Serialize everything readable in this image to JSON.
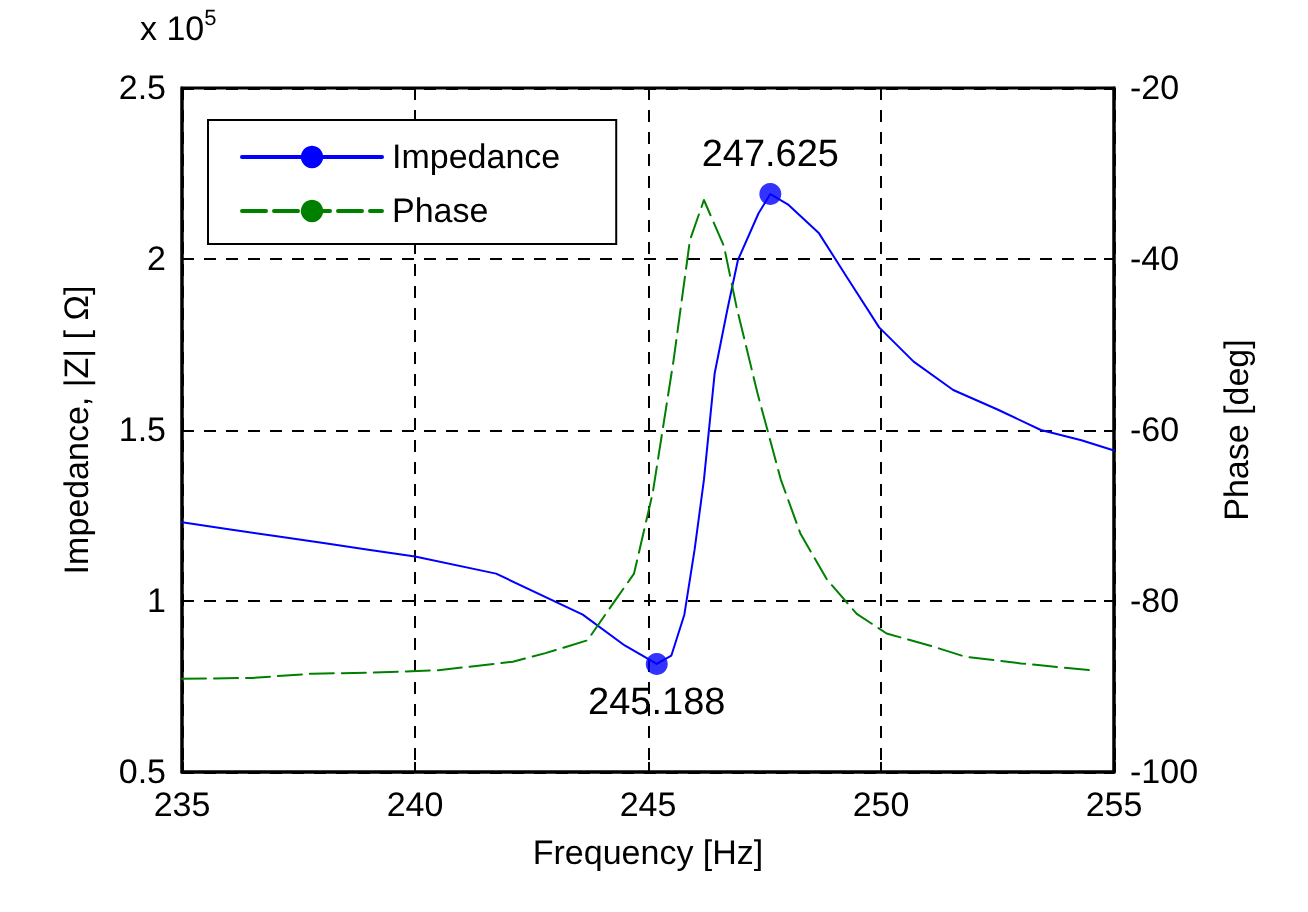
{
  "chart_data": {
    "type": "line",
    "xlabel": "Frequency [Hz]",
    "ylabel": "Impedance, |Z| [ Ω]",
    "y2label": "Phase [deg]",
    "annotations": [
      "x 10$^{5}$",
      {
        "text": "247.625",
        "x": 247.625,
        "y": 2.19
      },
      {
        "text": "245.188",
        "x": 245.188,
        "y": 0.816
      }
    ],
    "series": [
      {
        "name": "Impedance",
        "color": "#0000ff",
        "line_style": "solid",
        "x": [
          235,
          236,
          237,
          238,
          239,
          240,
          241.74,
          243.6,
          244.5,
          245.188,
          245.5,
          245.78,
          246.0,
          246.2,
          246.43,
          246.7,
          246.93,
          247.37,
          247.625,
          248.0,
          248.67,
          249.3,
          249.96,
          250.7,
          251.55,
          252.5,
          253.43,
          254.3,
          255
        ],
        "values": [
          1.23,
          1.21,
          1.19,
          1.17,
          1.15,
          1.13,
          1.08,
          0.96,
          0.87,
          0.816,
          0.84,
          0.96,
          1.15,
          1.354,
          1.665,
          1.85,
          1.997,
          2.133,
          2.19,
          2.16,
          2.075,
          1.94,
          1.8,
          1.7,
          1.617,
          1.56,
          1.5,
          1.47,
          1.44
        ]
      },
      {
        "name": "Phase",
        "color": "#008000",
        "line_style": "dashed",
        "axis": "y2",
        "x": [
          235,
          236.5,
          237.8,
          239,
          240.5,
          242.1,
          242.8,
          243.7,
          244.3,
          244.7,
          245.1,
          245.55,
          245.9,
          246.2,
          246.63,
          246.9,
          247.35,
          247.85,
          248.27,
          248.84,
          249.48,
          250.12,
          251.1,
          251.8,
          253.0,
          254.5
        ],
        "values": [
          -89.1,
          -89.0,
          -88.5,
          -88.4,
          -88.1,
          -87.1,
          -86.1,
          -84.6,
          -79.9,
          -76.8,
          -67.4,
          -51.8,
          -37.8,
          -33.1,
          -38.5,
          -45.6,
          -55.7,
          -65.8,
          -72.1,
          -77.5,
          -81.5,
          -83.8,
          -85.3,
          -86.5,
          -87.3,
          -88.1
        ]
      },
      {
        "type": "scatter",
        "color": "#0000ff",
        "marker": "circle",
        "x": [
          245.188,
          247.625
        ],
        "values": [
          0.816,
          2.19
        ]
      }
    ],
    "xlim": [
      235,
      255
    ],
    "xticks": [
      235,
      240,
      245,
      250,
      255
    ],
    "ylim": [
      0.5,
      2.5
    ],
    "yticks": [
      0.5,
      1,
      1.5,
      2,
      2.5
    ],
    "y2lim": [
      -100,
      -20
    ],
    "y2ticks": [
      -100,
      -80,
      -60,
      -40,
      -20
    ],
    "grid": true,
    "legend": "top left",
    "marker": "none"
  }
}
